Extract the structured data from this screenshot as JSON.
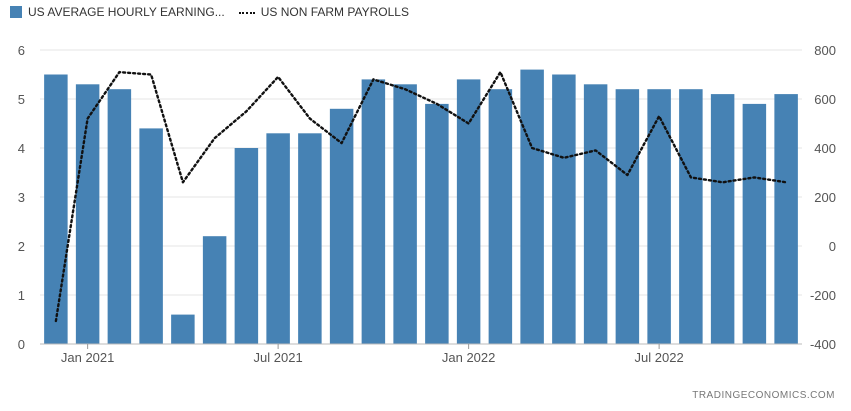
{
  "legend": {
    "bar_label": "US AVERAGE HOURLY EARNING...",
    "line_label": "US NON FARM PAYROLLS"
  },
  "watermark": "TRADINGECONOMICS.COM",
  "colors": {
    "bar": "#4682b4",
    "line": "#111111",
    "grid": "#e6e6e6",
    "tick": "#555555"
  },
  "chart_data": {
    "type": "bar",
    "title": "",
    "xlabel": "",
    "ylabel": "",
    "x_tick_labels": [
      {
        "label": "Jan 2021",
        "index": 1
      },
      {
        "label": "Jul 2021",
        "index": 7
      },
      {
        "label": "Jan 2022",
        "index": 13
      },
      {
        "label": "Jul 2022",
        "index": 19
      }
    ],
    "y_left": {
      "min": 0,
      "max": 6,
      "ticks": [
        0,
        1,
        2,
        3,
        4,
        5,
        6
      ]
    },
    "y_right": {
      "min": -400,
      "max": 800,
      "ticks": [
        -400,
        -200,
        0,
        200,
        400,
        600,
        800
      ]
    },
    "grid": true,
    "legend_position": "top-left",
    "series": [
      {
        "name": "US AVERAGE HOURLY EARNING...",
        "kind": "bar",
        "axis": "left",
        "values": [
          5.5,
          5.3,
          5.2,
          4.4,
          0.6,
          2.2,
          4.0,
          4.3,
          4.3,
          4.8,
          5.4,
          5.3,
          4.9,
          5.4,
          5.2,
          5.6,
          5.5,
          5.3,
          5.2,
          5.2,
          5.2,
          5.1,
          4.9,
          5.1
        ]
      },
      {
        "name": "US NON FARM PAYROLLS",
        "kind": "line",
        "axis": "right",
        "values": [
          -306,
          520,
          710,
          700,
          260,
          440,
          550,
          690,
          520,
          420,
          680,
          640,
          580,
          500,
          710,
          400,
          360,
          390,
          290,
          530,
          280,
          260,
          280,
          260
        ]
      }
    ]
  }
}
